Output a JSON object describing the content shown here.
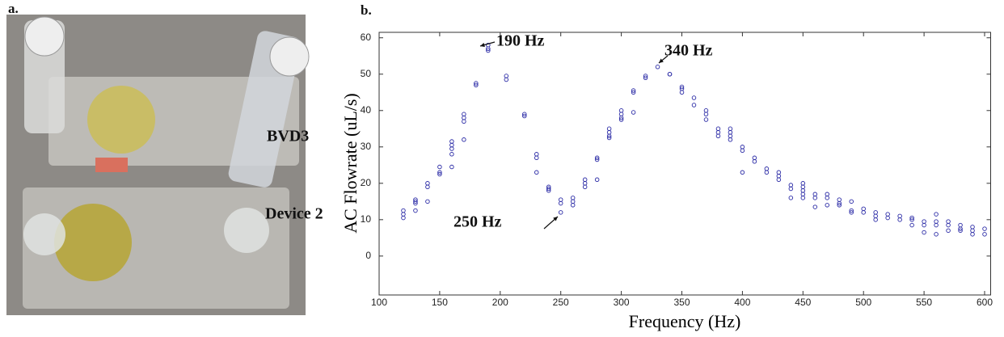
{
  "photo": {
    "panel_label": "a.",
    "labels": [
      "BVD3",
      "Device 2"
    ]
  },
  "chart_data": {
    "type": "scatter",
    "panel_label": "b.",
    "xlabel": "Frequency (Hz)",
    "ylabel": "AC Flowrate (uL/s)",
    "annotations": [
      "190 Hz",
      "340 Hz",
      "250 Hz"
    ],
    "color": "#2b2ba6",
    "xlim": [
      100,
      605
    ],
    "ylim": [
      -10.7,
      61.5
    ],
    "xticks": [
      100,
      150,
      200,
      250,
      300,
      350,
      400,
      450,
      500,
      550,
      600
    ],
    "yticks": [
      0,
      10,
      20,
      30,
      40,
      50,
      60
    ],
    "x": [
      120,
      120,
      120,
      130,
      130,
      130,
      130,
      140,
      140,
      140,
      150,
      150,
      150,
      160,
      160,
      160,
      160,
      160,
      170,
      170,
      170,
      170,
      180,
      180,
      190,
      190,
      190,
      205,
      205,
      220,
      220,
      230,
      230,
      230,
      240,
      240,
      240,
      250,
      250,
      250,
      260,
      260,
      260,
      270,
      270,
      270,
      280,
      280,
      280,
      290,
      290,
      290,
      290,
      300,
      300,
      300,
      300,
      310,
      310,
      310,
      320,
      320,
      330,
      340,
      340,
      350,
      350,
      350,
      360,
      360,
      370,
      370,
      370,
      380,
      380,
      380,
      390,
      390,
      390,
      390,
      400,
      400,
      400,
      410,
      410,
      420,
      420,
      430,
      430,
      430,
      440,
      440,
      440,
      450,
      450,
      450,
      450,
      450,
      460,
      460,
      460,
      470,
      470,
      470,
      480,
      480,
      480,
      490,
      490,
      490,
      500,
      500,
      510,
      510,
      510,
      520,
      520,
      530,
      530,
      540,
      540,
      540,
      550,
      550,
      550,
      560,
      560,
      560,
      560,
      570,
      570,
      570,
      580,
      580,
      580,
      590,
      590,
      590,
      600,
      600
    ],
    "values": [
      12.5,
      11.5,
      10.5,
      15.5,
      15,
      14.5,
      12.5,
      20,
      19,
      15,
      24.5,
      23,
      22.5,
      31.5,
      30.5,
      29.5,
      28,
      24.5,
      39,
      38,
      37,
      32,
      47.5,
      47,
      58,
      57,
      56.5,
      49.5,
      48.5,
      39,
      38.5,
      28,
      27,
      23,
      19,
      18.5,
      18,
      15.5,
      14.5,
      12,
      16,
      15,
      14,
      21,
      20,
      19,
      27,
      26.5,
      21,
      35,
      34,
      33,
      32.5,
      40,
      39,
      38,
      37.5,
      45.5,
      45,
      39.5,
      49.5,
      49,
      52,
      50,
      50,
      46.5,
      46,
      45,
      43.5,
      41.5,
      40,
      39,
      37.5,
      35,
      34,
      33,
      35,
      34,
      33,
      32,
      30,
      29,
      23,
      27,
      26,
      24,
      23,
      23,
      22,
      21,
      19.5,
      18.5,
      16,
      20,
      19,
      18,
      17,
      16,
      17,
      16,
      13.5,
      17,
      16,
      14,
      15.5,
      14.5,
      14,
      15,
      12.5,
      12,
      13,
      12,
      12,
      11,
      10,
      11.5,
      10.5,
      11,
      10,
      10.5,
      10,
      8.5,
      9.5,
      8.5,
      6.5,
      11.5,
      9.5,
      8.5,
      6,
      9.5,
      8.5,
      7,
      8.5,
      7.5,
      7,
      8,
      7,
      6,
      7.5,
      6
    ]
  }
}
